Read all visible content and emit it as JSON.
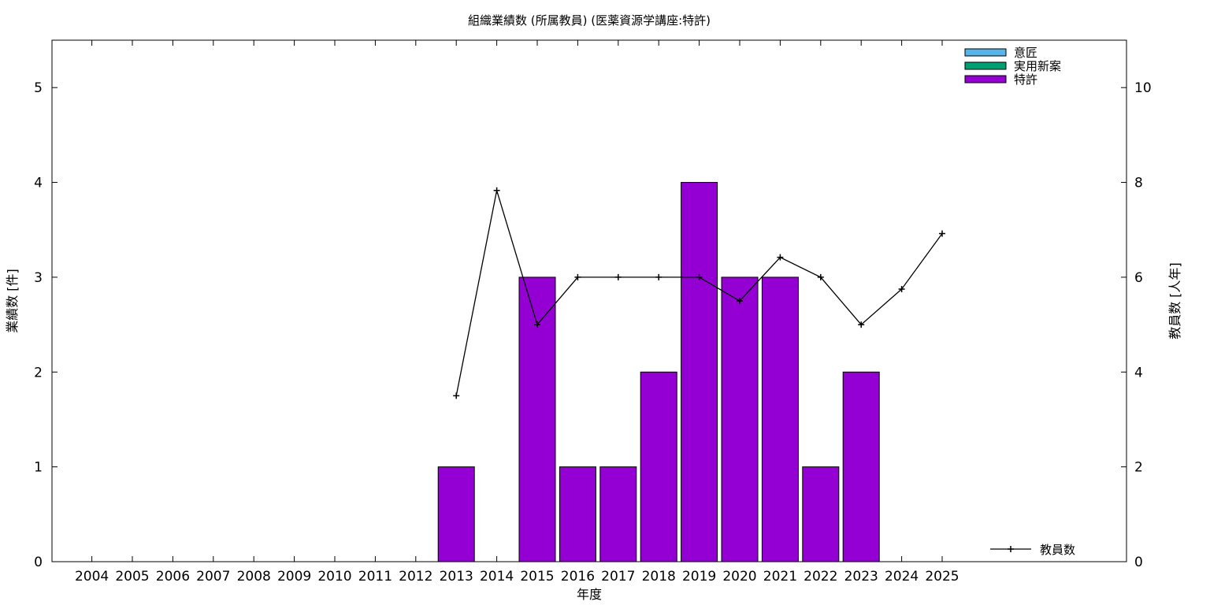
{
  "chart_data": {
    "type": "bar",
    "title": "組織業績数 (所属教員) (医薬資源学講座:特許)",
    "xlabel": "年度",
    "ylabel": "業績数 [件]",
    "y2label": "教員数 [人年]",
    "ylim": [
      0,
      5.5
    ],
    "y2lim": [
      0,
      11
    ],
    "yticks": [
      0,
      1,
      2,
      3,
      4,
      5
    ],
    "y2ticks": [
      0,
      2,
      4,
      6,
      8,
      10
    ],
    "categories": [
      "2004",
      "2005",
      "2006",
      "2007",
      "2008",
      "2009",
      "2010",
      "2011",
      "2012",
      "2013",
      "2014",
      "2015",
      "2016",
      "2017",
      "2018",
      "2019",
      "2020",
      "2021",
      "2022",
      "2023",
      "2024",
      "2025"
    ],
    "series": [
      {
        "name": "意匠",
        "color": "#56b4e9",
        "values": [
          0,
          0,
          0,
          0,
          0,
          0,
          0,
          0,
          0,
          0,
          0,
          0,
          0,
          0,
          0,
          0,
          0,
          0,
          0,
          0,
          0,
          0
        ]
      },
      {
        "name": "実用新案",
        "color": "#009e73",
        "values": [
          0,
          0,
          0,
          0,
          0,
          0,
          0,
          0,
          0,
          0,
          0,
          0,
          0,
          0,
          0,
          0,
          0,
          0,
          0,
          0,
          0,
          0
        ]
      },
      {
        "name": "特許",
        "color": "#9400d3",
        "values": [
          0,
          0,
          0,
          0,
          0,
          0,
          0,
          0,
          0,
          1,
          0,
          3,
          1,
          1,
          2,
          4,
          3,
          3,
          1,
          2,
          0,
          0
        ]
      }
    ],
    "line_series": {
      "name": "教員数",
      "color": "#000000",
      "axis": "y2",
      "x": [
        "2013",
        "2014",
        "2015",
        "2016",
        "2017",
        "2018",
        "2019",
        "2020",
        "2021",
        "2022",
        "2023",
        "2024",
        "2025"
      ],
      "values": [
        3.5,
        7.83,
        5.0,
        6.0,
        6.0,
        6.0,
        6.0,
        5.5,
        6.42,
        6.0,
        5.0,
        5.75,
        6.92
      ]
    },
    "legend_position": "top-right",
    "line_legend_position": "bottom-right",
    "grid": false
  }
}
